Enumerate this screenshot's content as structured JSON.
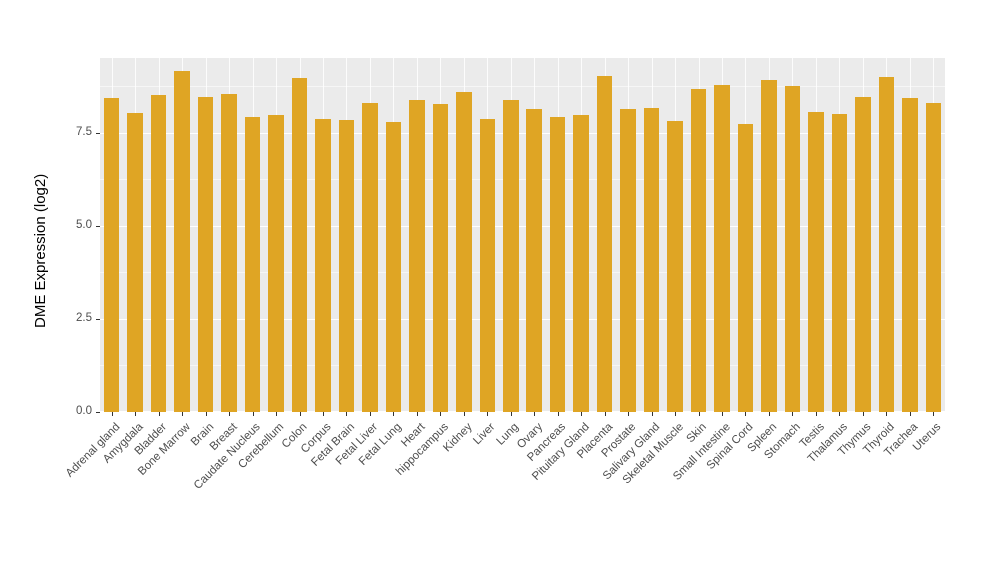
{
  "chart_data": {
    "type": "bar",
    "title": "",
    "xlabel": "",
    "ylabel": "DME Expression (log2)",
    "ylim": [
      0,
      9.5
    ],
    "yticks": [
      0.0,
      2.5,
      5.0,
      7.5
    ],
    "ytick_labels": [
      "0.0",
      "2.5",
      "5.0",
      "7.5"
    ],
    "grid": "on",
    "legend": "none",
    "bar_color": "#DFA524",
    "panel_bg": "#EBEBEB",
    "grid_color": "#FFFFFF",
    "axis_text_color": "#4d4d4d",
    "categories": [
      "Adrenal gland",
      "Amygdala",
      "Bladder",
      "Bone Marrow",
      "Brain",
      "Breast",
      "Caudate Nucleus",
      "Cerebellum",
      "Colon",
      "Corpus",
      "Fetal Brain",
      "Fetal Liver",
      "Fetal Lung",
      "Heart",
      "hippocampus",
      "Kidney",
      "Liver",
      "Lung",
      "Ovary",
      "Pancreas",
      "Pituitary Gland",
      "Placenta",
      "Prostate",
      "Salivary Gland",
      "Skeletal Muscle",
      "Skin",
      "Small Intestine",
      "Spinal Cord",
      "Spleen",
      "Stomach",
      "Testis",
      "Thalamus",
      "Thymus",
      "Thyroid",
      "Trachea",
      "Uterus"
    ],
    "values": [
      8.43,
      8.02,
      8.5,
      9.15,
      8.46,
      8.54,
      7.92,
      7.98,
      8.95,
      7.87,
      7.84,
      8.3,
      7.78,
      8.36,
      8.27,
      8.6,
      7.86,
      8.38,
      8.14,
      7.92,
      7.98,
      9.02,
      8.14,
      8.17,
      7.81,
      8.68,
      8.77,
      7.73,
      8.92,
      8.74,
      8.06,
      8.0,
      8.46,
      8.98,
      8.42,
      8.3
    ]
  }
}
